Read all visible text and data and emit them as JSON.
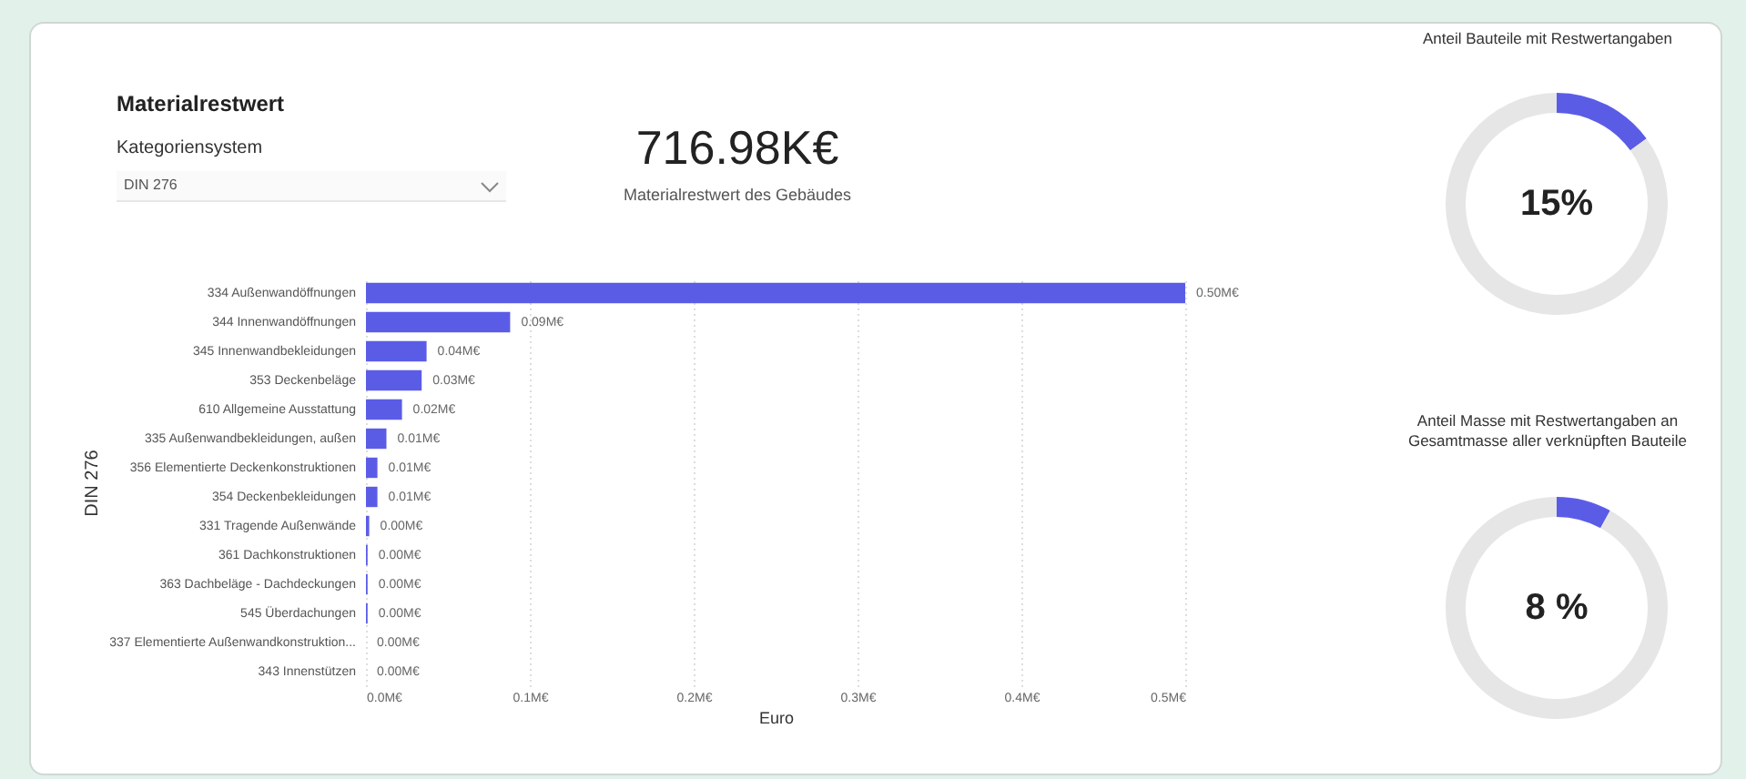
{
  "chart_data": [
    {
      "type": "bar",
      "orientation": "horizontal",
      "title": "Materialrestwert",
      "annotations": [
        "Kategoriensystem",
        "DIN 276"
      ],
      "ylabel": "DIN 276",
      "xlabel": "Euro",
      "categories": [
        "334 Außenwandöffnungen",
        "344 Innenwandöffnungen",
        "345 Innenwandbekleidungen",
        "353 Deckenbeläge",
        "610 Allgemeine Ausstattung",
        "335 Außenwandbekleidungen, außen",
        "356 Elementierte Deckenkonstruktionen",
        "354 Deckenbekleidungen",
        "331 Tragende Außenwände",
        "361 Dachkonstruktionen",
        "363 Dachbeläge - Dachdeckungen",
        "545 Überdachungen",
        "337 Elementierte Außenwandkonstruktion...",
        "343 Innenstützen"
      ],
      "values": [
        0.5,
        0.088,
        0.037,
        0.034,
        0.022,
        0.0125,
        0.007,
        0.007,
        0.002,
        0.001,
        0.001,
        0.001,
        0,
        0
      ],
      "value_labels": [
        "0.50M€",
        "0.09M€",
        "0.04M€",
        "0.03M€",
        "0.02M€",
        "0.01M€",
        "0.01M€",
        "0.01M€",
        "0.00M€",
        "0.00M€",
        "0.00M€",
        "0.00M€",
        "0.00M€",
        "0.00M€"
      ],
      "color": "#5b5ce6",
      "xlim": [
        0,
        0.5
      ],
      "xticks": [
        {
          "value": 0,
          "label": "0.0M€"
        },
        {
          "value": 0.1,
          "label": "0.1M€"
        },
        {
          "value": 0.2,
          "label": "0.2M€"
        },
        {
          "value": 0.3,
          "label": "0.3M€"
        },
        {
          "value": 0.4,
          "label": "0.4M€"
        },
        {
          "value": 0.5,
          "label": "0.5M€"
        }
      ],
      "grid": "x"
    },
    {
      "type": "other",
      "annotations": [
        "716.98K€",
        "Materialrestwert des Gebäudes"
      ]
    },
    {
      "type": "donut",
      "title": "Anteil Bauteile mit Restwertangaben",
      "categories": [
        null,
        null
      ],
      "values": [
        15,
        85
      ],
      "colors": [
        "#5b5ce6",
        "#e6e6e6"
      ],
      "annotations": [
        "15%"
      ]
    },
    {
      "type": "donut",
      "title": "Anteil Masse mit Restwertangaben an Gesamtmasse aller verknüpften Bauteile",
      "categories": [
        null,
        null
      ],
      "values": [
        8,
        92
      ],
      "colors": [
        "#5b5ce6",
        "#e6e6e6"
      ],
      "annotations": [
        "8 %"
      ]
    }
  ]
}
